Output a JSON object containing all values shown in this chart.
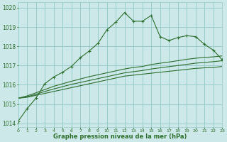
{
  "title": "Graphe pression niveau de la mer (hPa)",
  "bg_color": "#cce8e8",
  "grid_color": "#99cccc",
  "line_color": "#2d6e2d",
  "xlim": [
    0,
    23
  ],
  "ylim": [
    1013.8,
    1020.3
  ],
  "yticks": [
    1014,
    1015,
    1016,
    1017,
    1018,
    1019,
    1020
  ],
  "xticks": [
    0,
    1,
    2,
    3,
    4,
    5,
    6,
    7,
    8,
    9,
    10,
    11,
    12,
    13,
    14,
    15,
    16,
    17,
    18,
    19,
    20,
    21,
    22,
    23
  ],
  "line1_x": [
    0,
    1,
    2,
    3,
    4,
    5,
    6,
    7,
    8,
    9,
    10,
    11,
    12,
    13,
    14,
    15,
    16,
    17,
    18,
    19,
    20,
    21,
    22,
    23
  ],
  "line1_y": [
    1014.1,
    1014.75,
    1015.3,
    1016.05,
    1016.4,
    1016.65,
    1016.95,
    1017.4,
    1017.75,
    1018.15,
    1018.85,
    1019.25,
    1019.75,
    1019.3,
    1019.3,
    1019.6,
    1018.5,
    1018.3,
    1018.45,
    1018.55,
    1018.5,
    1018.1,
    1017.8,
    1017.3
  ],
  "line2_x": [
    0,
    1,
    2,
    3,
    4,
    5,
    6,
    7,
    8,
    9,
    10,
    11,
    12,
    13,
    14,
    15,
    16,
    17,
    18,
    19,
    20,
    21,
    22,
    23
  ],
  "line2_y": [
    1015.3,
    1015.35,
    1015.45,
    1015.55,
    1015.65,
    1015.75,
    1015.85,
    1015.95,
    1016.05,
    1016.15,
    1016.25,
    1016.35,
    1016.45,
    1016.5,
    1016.55,
    1016.6,
    1016.65,
    1016.7,
    1016.75,
    1016.8,
    1016.85,
    1016.88,
    1016.9,
    1016.95
  ],
  "line3_x": [
    0,
    1,
    2,
    3,
    4,
    5,
    6,
    7,
    8,
    9,
    10,
    11,
    12,
    13,
    14,
    15,
    16,
    17,
    18,
    19,
    20,
    21,
    22,
    23
  ],
  "line3_y": [
    1015.3,
    1015.38,
    1015.5,
    1015.65,
    1015.78,
    1015.9,
    1016.02,
    1016.12,
    1016.22,
    1016.32,
    1016.42,
    1016.52,
    1016.62,
    1016.68,
    1016.74,
    1016.82,
    1016.88,
    1016.94,
    1017.0,
    1017.06,
    1017.12,
    1017.16,
    1017.2,
    1017.25
  ],
  "line4_x": [
    0,
    1,
    2,
    3,
    4,
    5,
    6,
    7,
    8,
    9,
    10,
    11,
    12,
    13,
    14,
    15,
    16,
    17,
    18,
    19,
    20,
    21,
    22,
    23
  ],
  "line4_y": [
    1015.3,
    1015.42,
    1015.58,
    1015.75,
    1015.92,
    1016.05,
    1016.18,
    1016.3,
    1016.42,
    1016.52,
    1016.62,
    1016.72,
    1016.82,
    1016.9,
    1016.95,
    1017.05,
    1017.12,
    1017.18,
    1017.25,
    1017.32,
    1017.38,
    1017.42,
    1017.45,
    1017.5
  ]
}
